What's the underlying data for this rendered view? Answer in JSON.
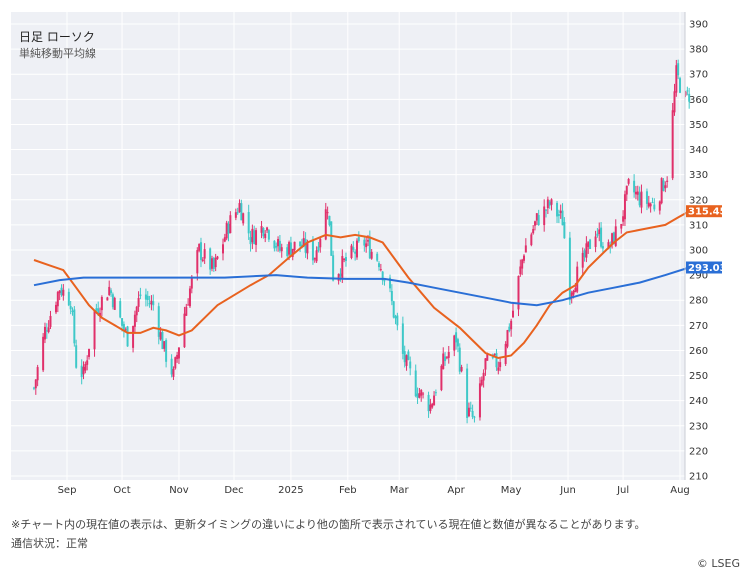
{
  "chart_data": {
    "type": "candlestick-line",
    "title": "日足 ローソク",
    "subtitle": "単純移動平均線",
    "ylim": [
      210,
      390
    ],
    "yticks": [
      210,
      220,
      230,
      240,
      250,
      260,
      270,
      280,
      290,
      300,
      310,
      320,
      330,
      340,
      350,
      360,
      370,
      380,
      390
    ],
    "xticks": [
      "Sep",
      "Oct",
      "Nov",
      "Dec",
      "2025",
      "Feb",
      "Mar",
      "Apr",
      "May",
      "Jun",
      "Jul",
      "Aug"
    ],
    "grid": true,
    "candle_colors": {
      "up": "#e0306a",
      "down": "#3ec8c8"
    },
    "price_anchors": [
      {
        "x": "2024-08-14",
        "y": 245
      },
      {
        "x": "2024-08-20",
        "y": 268
      },
      {
        "x": "2024-08-28",
        "y": 285
      },
      {
        "x": "2024-09-03",
        "y": 280
      },
      {
        "x": "2024-09-06",
        "y": 255
      },
      {
        "x": "2024-09-10",
        "y": 250
      },
      {
        "x": "2024-09-16",
        "y": 275
      },
      {
        "x": "2024-09-24",
        "y": 285
      },
      {
        "x": "2024-10-01",
        "y": 270
      },
      {
        "x": "2024-10-04",
        "y": 265
      },
      {
        "x": "2024-10-11",
        "y": 282
      },
      {
        "x": "2024-10-18",
        "y": 278
      },
      {
        "x": "2024-10-24",
        "y": 260
      },
      {
        "x": "2024-10-29",
        "y": 250
      },
      {
        "x": "2024-11-04",
        "y": 275
      },
      {
        "x": "2024-11-12",
        "y": 300
      },
      {
        "x": "2024-11-20",
        "y": 292
      },
      {
        "x": "2024-11-28",
        "y": 310
      },
      {
        "x": "2024-12-04",
        "y": 318
      },
      {
        "x": "2024-12-10",
        "y": 305
      },
      {
        "x": "2024-12-18",
        "y": 310
      },
      {
        "x": "2024-12-26",
        "y": 300
      },
      {
        "x": "2025-01-06",
        "y": 302
      },
      {
        "x": "2025-01-14",
        "y": 298
      },
      {
        "x": "2025-01-21",
        "y": 318
      },
      {
        "x": "2025-01-24",
        "y": 290
      },
      {
        "x": "2025-02-03",
        "y": 298
      },
      {
        "x": "2025-02-10",
        "y": 303
      },
      {
        "x": "2025-02-18",
        "y": 296
      },
      {
        "x": "2025-02-24",
        "y": 282
      },
      {
        "x": "2025-03-03",
        "y": 258
      },
      {
        "x": "2025-03-10",
        "y": 245
      },
      {
        "x": "2025-03-18",
        "y": 238
      },
      {
        "x": "2025-03-25",
        "y": 255
      },
      {
        "x": "2025-04-01",
        "y": 265
      },
      {
        "x": "2025-04-07",
        "y": 236
      },
      {
        "x": "2025-04-11",
        "y": 232
      },
      {
        "x": "2025-04-17",
        "y": 255
      },
      {
        "x": "2025-04-24",
        "y": 255
      },
      {
        "x": "2025-05-01",
        "y": 272
      },
      {
        "x": "2025-05-08",
        "y": 300
      },
      {
        "x": "2025-05-15",
        "y": 312
      },
      {
        "x": "2025-05-22",
        "y": 318
      },
      {
        "x": "2025-05-29",
        "y": 312
      },
      {
        "x": "2025-06-02",
        "y": 284
      },
      {
        "x": "2025-06-09",
        "y": 295
      },
      {
        "x": "2025-06-16",
        "y": 308
      },
      {
        "x": "2025-06-23",
        "y": 300
      },
      {
        "x": "2025-06-30",
        "y": 312
      },
      {
        "x": "2025-07-04",
        "y": 325
      },
      {
        "x": "2025-07-11",
        "y": 320
      },
      {
        "x": "2025-07-18",
        "y": 318
      },
      {
        "x": "2025-07-25",
        "y": 330
      },
      {
        "x": "2025-07-30",
        "y": 370
      },
      {
        "x": "2025-08-04",
        "y": 360
      },
      {
        "x": "2025-08-06",
        "y": 362
      }
    ],
    "series": [
      {
        "color": "#e8621f",
        "line_width": 2,
        "current_value": "315.45",
        "points": [
          {
            "x": "2024-08-14",
            "y": 296
          },
          {
            "x": "2024-08-22",
            "y": 294
          },
          {
            "x": "2024-08-30",
            "y": 292
          },
          {
            "x": "2024-09-06",
            "y": 285
          },
          {
            "x": "2024-09-13",
            "y": 278
          },
          {
            "x": "2024-09-20",
            "y": 273
          },
          {
            "x": "2024-09-27",
            "y": 270
          },
          {
            "x": "2024-10-04",
            "y": 267
          },
          {
            "x": "2024-10-11",
            "y": 267
          },
          {
            "x": "2024-10-18",
            "y": 269
          },
          {
            "x": "2024-10-25",
            "y": 268
          },
          {
            "x": "2024-11-01",
            "y": 266
          },
          {
            "x": "2024-11-08",
            "y": 268
          },
          {
            "x": "2024-11-15",
            "y": 273
          },
          {
            "x": "2024-11-22",
            "y": 278
          },
          {
            "x": "2024-12-01",
            "y": 282
          },
          {
            "x": "2024-12-10",
            "y": 286
          },
          {
            "x": "2024-12-20",
            "y": 290
          },
          {
            "x": "2024-12-31",
            "y": 297
          },
          {
            "x": "2025-01-10",
            "y": 303
          },
          {
            "x": "2025-01-20",
            "y": 306
          },
          {
            "x": "2025-01-28",
            "y": 305
          },
          {
            "x": "2025-02-05",
            "y": 306
          },
          {
            "x": "2025-02-13",
            "y": 305
          },
          {
            "x": "2025-02-20",
            "y": 303
          },
          {
            "x": "2025-02-27",
            "y": 296
          },
          {
            "x": "2025-03-06",
            "y": 289
          },
          {
            "x": "2025-03-13",
            "y": 283
          },
          {
            "x": "2025-03-20",
            "y": 277
          },
          {
            "x": "2025-03-27",
            "y": 273
          },
          {
            "x": "2025-04-03",
            "y": 269
          },
          {
            "x": "2025-04-10",
            "y": 264
          },
          {
            "x": "2025-04-17",
            "y": 259
          },
          {
            "x": "2025-04-24",
            "y": 257
          },
          {
            "x": "2025-05-01",
            "y": 258
          },
          {
            "x": "2025-05-08",
            "y": 263
          },
          {
            "x": "2025-05-15",
            "y": 270
          },
          {
            "x": "2025-05-22",
            "y": 278
          },
          {
            "x": "2025-05-29",
            "y": 283
          },
          {
            "x": "2025-06-05",
            "y": 286
          },
          {
            "x": "2025-06-12",
            "y": 293
          },
          {
            "x": "2025-06-19",
            "y": 298
          },
          {
            "x": "2025-06-26",
            "y": 303
          },
          {
            "x": "2025-07-03",
            "y": 307
          },
          {
            "x": "2025-07-10",
            "y": 308
          },
          {
            "x": "2025-07-17",
            "y": 309
          },
          {
            "x": "2025-07-24",
            "y": 310
          },
          {
            "x": "2025-07-31",
            "y": 313
          },
          {
            "x": "2025-08-06",
            "y": 315.45
          }
        ]
      },
      {
        "color": "#2a6fd6",
        "line_width": 2,
        "current_value": "293.03",
        "points": [
          {
            "x": "2024-08-14",
            "y": 286
          },
          {
            "x": "2024-08-28",
            "y": 288
          },
          {
            "x": "2024-09-10",
            "y": 289
          },
          {
            "x": "2024-10-01",
            "y": 289
          },
          {
            "x": "2024-10-29",
            "y": 289
          },
          {
            "x": "2024-11-26",
            "y": 289
          },
          {
            "x": "2024-12-24",
            "y": 290
          },
          {
            "x": "2025-01-10",
            "y": 289
          },
          {
            "x": "2025-01-31",
            "y": 288.5
          },
          {
            "x": "2025-02-21",
            "y": 288.5
          },
          {
            "x": "2025-03-06",
            "y": 287
          },
          {
            "x": "2025-03-20",
            "y": 285
          },
          {
            "x": "2025-04-03",
            "y": 283
          },
          {
            "x": "2025-04-17",
            "y": 281
          },
          {
            "x": "2025-05-01",
            "y": 279
          },
          {
            "x": "2025-05-15",
            "y": 278
          },
          {
            "x": "2025-05-29",
            "y": 280
          },
          {
            "x": "2025-06-12",
            "y": 283
          },
          {
            "x": "2025-06-26",
            "y": 285
          },
          {
            "x": "2025-07-10",
            "y": 287
          },
          {
            "x": "2025-07-24",
            "y": 290
          },
          {
            "x": "2025-08-06",
            "y": 293.03
          }
        ]
      }
    ]
  },
  "footer": {
    "note": "※チャート内の現在値の表示は、更新タイミングの違いにより他の箇所で表示されている現在値と数値が異なることがあります。",
    "status": "通信状況：正常",
    "copyright": "© LSEG"
  }
}
